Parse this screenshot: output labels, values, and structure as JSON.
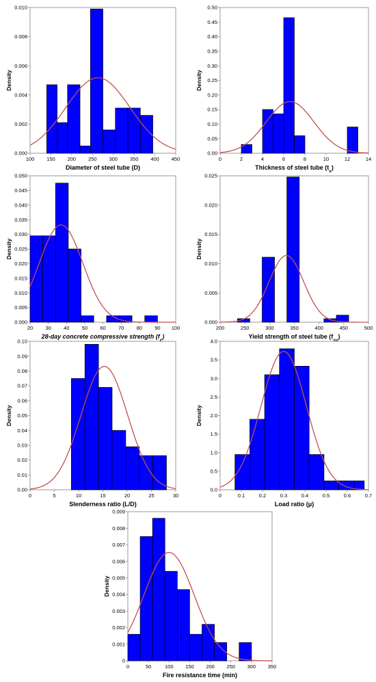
{
  "colors": {
    "bar_fill": "#0000ff",
    "bar_stroke": "#000000",
    "curve": "#c0504d"
  },
  "chart_data": [
    {
      "type": "bar",
      "ylabel": "Density",
      "xlabel_parts": [
        {
          "t": "Diameter of steel tube (D)"
        }
      ],
      "xticks": [
        "100",
        "150",
        "200",
        "250",
        "300",
        "350",
        "400",
        "450"
      ],
      "yticks": [
        "0.000",
        "0.002",
        "0.004",
        "0.006",
        "0.008",
        "0.010"
      ],
      "xlim": [
        100,
        450
      ],
      "ylim": [
        0,
        0.01
      ],
      "bins": [
        [
          140,
          165,
          0.0047
        ],
        [
          165,
          190,
          0.0021
        ],
        [
          190,
          220,
          0.0047
        ],
        [
          220,
          245,
          0.0005
        ],
        [
          245,
          275,
          0.0099
        ],
        [
          275,
          305,
          0.0016
        ],
        [
          305,
          335,
          0.0031
        ],
        [
          335,
          365,
          0.0031
        ],
        [
          365,
          395,
          0.0026
        ]
      ],
      "normal": {
        "mean": 263,
        "sd": 77
      }
    },
    {
      "type": "bar",
      "ylabel": "Density",
      "xlabel_parts": [
        {
          "t": "Thickness of steel tube (t"
        },
        {
          "t": "s",
          "sub": true
        },
        {
          "t": ")"
        }
      ],
      "xticks": [
        "0",
        "2",
        "4",
        "6",
        "8",
        "10",
        "12",
        "14"
      ],
      "yticks": [
        "0.00",
        "0.05",
        "0.10",
        "0.15",
        "0.20",
        "0.25",
        "0.30",
        "0.35",
        "0.40",
        "0.45",
        "0.50"
      ],
      "xlim": [
        0,
        14
      ],
      "ylim": [
        0,
        0.5
      ],
      "bins": [
        [
          2,
          3,
          0.03
        ],
        [
          4,
          5,
          0.15
        ],
        [
          5,
          6,
          0.135
        ],
        [
          6,
          7,
          0.465
        ],
        [
          7,
          8,
          0.06
        ],
        [
          12,
          13,
          0.09
        ]
      ],
      "normal": {
        "mean": 6.6,
        "sd": 2.25
      }
    },
    {
      "type": "bar",
      "ylabel": "Density",
      "xlabel_parts": [
        {
          "t": "28-day concrete compressive strength (f"
        },
        {
          "t": "c",
          "sub": true
        },
        {
          "t": ")"
        }
      ],
      "xlabel_italic": true,
      "xticks": [
        "20",
        "30",
        "40",
        "50",
        "60",
        "70",
        "80",
        "90",
        "100"
      ],
      "yticks": [
        "0.000",
        "0.005",
        "0.010",
        "0.015",
        "0.020",
        "0.025",
        "0.030",
        "0.035",
        "0.040",
        "0.045",
        "0.050"
      ],
      "xlim": [
        20,
        100
      ],
      "ylim": [
        0,
        0.05
      ],
      "bins": [
        [
          20,
          27,
          0.0295
        ],
        [
          27,
          34,
          0.0295
        ],
        [
          34,
          41,
          0.0475
        ],
        [
          41,
          48,
          0.025
        ],
        [
          48,
          55,
          0.0022
        ],
        [
          62,
          69,
          0.0022
        ],
        [
          69,
          76,
          0.0022
        ],
        [
          83,
          90,
          0.0022
        ]
      ],
      "normal": {
        "mean": 37,
        "sd": 12
      }
    },
    {
      "type": "bar",
      "ylabel": "Density",
      "xlabel_parts": [
        {
          "t": "Yield strength of steel tube (f"
        },
        {
          "t": "sy",
          "sub": true
        },
        {
          "t": ")"
        }
      ],
      "xticks": [
        "200",
        "250",
        "300",
        "350",
        "400",
        "450",
        "500"
      ],
      "yticks": [
        "0.000",
        "0.005",
        "0.010",
        "0.015",
        "0.020",
        "0.025"
      ],
      "xlim": [
        200,
        500
      ],
      "ylim": [
        0,
        0.025
      ],
      "bins": [
        [
          235,
          260,
          0.0006
        ],
        [
          285,
          310,
          0.0111
        ],
        [
          335,
          360,
          0.0248
        ],
        [
          410,
          435,
          0.0006
        ],
        [
          435,
          460,
          0.0012
        ]
      ],
      "normal": {
        "mean": 334,
        "sd": 35
      }
    },
    {
      "type": "bar",
      "ylabel": "Density",
      "xlabel_parts": [
        {
          "t": "Slenderness ratio (L/D)"
        }
      ],
      "xticks": [
        "0",
        "5",
        "10",
        "15",
        "20",
        "25",
        "30"
      ],
      "yticks": [
        "0.00",
        "0.01",
        "0.02",
        "0.03",
        "0.04",
        "0.05",
        "0.06",
        "0.07",
        "0.08",
        "0.09",
        "0.10"
      ],
      "xlim": [
        0,
        30
      ],
      "ylim": [
        0,
        0.1
      ],
      "bins": [
        [
          8.5,
          11.3,
          0.075
        ],
        [
          11.3,
          14.1,
          0.098
        ],
        [
          14.1,
          16.9,
          0.069
        ],
        [
          16.9,
          19.7,
          0.04
        ],
        [
          19.7,
          22.5,
          0.029
        ],
        [
          22.5,
          25.3,
          0.023
        ],
        [
          25.3,
          28.1,
          0.023
        ]
      ],
      "normal": {
        "mean": 15.3,
        "sd": 4.8
      }
    },
    {
      "type": "bar",
      "ylabel": "Density",
      "xlabel_parts": [
        {
          "t": "Load ratio (μ)"
        }
      ],
      "xticks": [
        "0",
        "0.1",
        "0.2",
        "0.3",
        "0.4",
        "0.5",
        "0.6",
        "0.7"
      ],
      "yticks": [
        "0.0",
        "0.5",
        "1.0",
        "1.5",
        "2.0",
        "2.5",
        "3.0",
        "3.5",
        "4.0"
      ],
      "xlim": [
        0,
        0.7
      ],
      "ylim": [
        0,
        4.0
      ],
      "bins": [
        [
          0.07,
          0.14,
          0.95
        ],
        [
          0.14,
          0.21,
          1.9
        ],
        [
          0.21,
          0.28,
          3.1
        ],
        [
          0.28,
          0.35,
          3.8
        ],
        [
          0.35,
          0.42,
          3.33
        ],
        [
          0.42,
          0.49,
          0.95
        ],
        [
          0.49,
          0.56,
          0.24
        ],
        [
          0.56,
          0.63,
          0.24
        ],
        [
          0.63,
          0.68,
          0.24
        ]
      ],
      "normal": {
        "mean": 0.3,
        "sd": 0.107
      }
    },
    {
      "type": "bar",
      "ylabel": "Density",
      "xlabel_parts": [
        {
          "t": "Fire resistance time (min)"
        }
      ],
      "xticks": [
        "0",
        "50",
        "100",
        "150",
        "200",
        "250",
        "300",
        "350"
      ],
      "yticks": [
        "0",
        "0.001",
        "0.002",
        "0.003",
        "0.004",
        "0.005",
        "0.006",
        "0.007",
        "0.008",
        "0.009"
      ],
      "xlim": [
        0,
        350
      ],
      "ylim": [
        0,
        0.009
      ],
      "bins": [
        [
          0,
          30,
          0.0016
        ],
        [
          30,
          60,
          0.0075
        ],
        [
          60,
          90,
          0.0086
        ],
        [
          90,
          120,
          0.0054
        ],
        [
          120,
          150,
          0.0043
        ],
        [
          150,
          180,
          0.0016
        ],
        [
          180,
          210,
          0.0022
        ],
        [
          210,
          240,
          0.0011
        ],
        [
          270,
          300,
          0.0011
        ]
      ],
      "normal": {
        "mean": 100,
        "sd": 61
      }
    }
  ]
}
